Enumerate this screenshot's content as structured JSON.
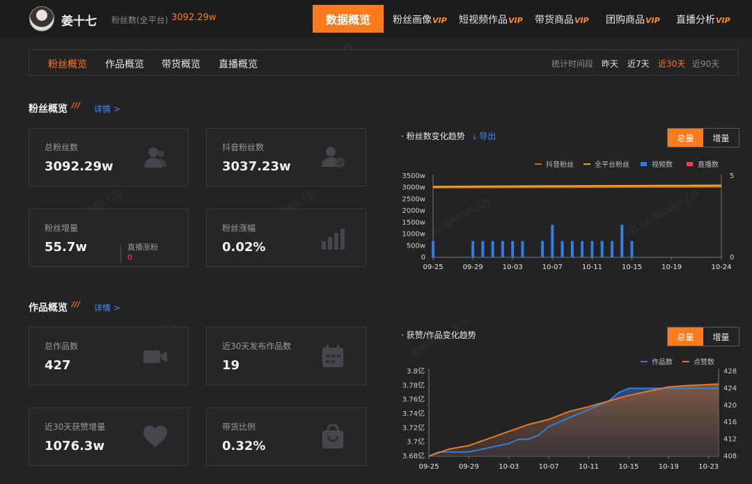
{
  "profile": {
    "name": "姜十七",
    "fans_label": "粉丝数(全平台)",
    "fans_value": "3092.29w"
  },
  "nav": {
    "active": "数据概览",
    "items": [
      {
        "label": "粉丝画像",
        "badge": "VIP"
      },
      {
        "label": "短视频作品",
        "badge": "VIP"
      },
      {
        "label": "带货商品",
        "badge": "VIP"
      },
      {
        "label": "团购商品",
        "badge": "VIP"
      },
      {
        "label": "直播分析",
        "badge": "VIP"
      }
    ]
  },
  "subnav": {
    "tabs": [
      "粉丝概览",
      "作品概览",
      "带货概览",
      "直播概览"
    ],
    "active_tab": "粉丝概览",
    "period_label": "统计时间段",
    "periods": [
      "昨天",
      "近7天",
      "近30天",
      "近90天"
    ],
    "active_period": "近30天"
  },
  "fans_section": {
    "title": "粉丝概览",
    "marks": "///",
    "link": "详情 >",
    "cards": [
      {
        "label": "总粉丝数",
        "value": "3092.29w",
        "icon": "users-icon"
      },
      {
        "label": "抖音粉丝数",
        "value": "3037.23w",
        "icon": "user-check-icon"
      },
      {
        "label": "粉丝增量",
        "value": "55.7w",
        "icon": "none",
        "sub_label": "直播涨粉",
        "sub_value": "0"
      },
      {
        "label": "粉丝涨幅",
        "value": "0.02%",
        "icon": "bar-growth-icon"
      }
    ]
  },
  "works_section": {
    "title": "作品概览",
    "marks": "///",
    "link": "详情 >",
    "cards": [
      {
        "label": "总作品数",
        "value": "427",
        "icon": "video-camera-icon"
      },
      {
        "label": "近30天发布作品数",
        "value": "19",
        "icon": "calendar-icon"
      },
      {
        "label": "近30天获赞增量",
        "value": "1076.3w",
        "icon": "heart-icon"
      },
      {
        "label": "带货比例",
        "value": "0.32%",
        "icon": "shopping-bag-icon"
      }
    ]
  },
  "toggle": {
    "total": "总量",
    "delta": "增量"
  },
  "export_label": "导出",
  "watermarks": {
    "site": "XD.NEWRANK.CN",
    "brand": "新榜有数 · 新抖"
  },
  "colors": {
    "accent": "#ff7a1a",
    "douyin_line": "#d4691e",
    "platform_line": "#e8a317",
    "bar": "#2f7fe0",
    "live": "#ff3b5c",
    "works_line": "#2f7fe0",
    "likes_line": "#e8782a"
  },
  "chart_data": [
    {
      "type": "line",
      "title": "粉丝数变化趋势",
      "legend": [
        "抖音粉丝",
        "全平台粉丝",
        "视频数",
        "直播数"
      ],
      "legend_position": "top-right",
      "x_ticks": [
        "09-25",
        "09-29",
        "10-03",
        "10-07",
        "10-11",
        "10-15",
        "10-19",
        "10-24"
      ],
      "y_left_ticks": [
        "0",
        "500w",
        "1000w",
        "1500w",
        "2000w",
        "2500w",
        "3000w",
        "3500w"
      ],
      "y_left_range": [
        0,
        3500
      ],
      "y_right_ticks": [
        "0",
        "5"
      ],
      "y_right_range": [
        0,
        5
      ],
      "x_start": "09-25",
      "series": [
        {
          "name": "抖音粉丝",
          "kind": "line",
          "axis": "left",
          "x": [
            "09-25",
            "10-24"
          ],
          "values": [
            3000,
            3037
          ]
        },
        {
          "name": "全平台粉丝",
          "kind": "line",
          "axis": "left",
          "x": [
            "09-25",
            "10-24"
          ],
          "values": [
            3040,
            3092
          ]
        },
        {
          "name": "视频数",
          "kind": "bar",
          "axis": "right",
          "x": [
            "09-25",
            "09-29",
            "09-30",
            "10-01",
            "10-02",
            "10-03",
            "10-04",
            "10-06",
            "10-07",
            "10-08",
            "10-09",
            "10-10",
            "10-11",
            "10-12",
            "10-13",
            "10-14",
            "10-15"
          ],
          "values": [
            1,
            1,
            1,
            1,
            1,
            1,
            1,
            1,
            2,
            1,
            1,
            1,
            1,
            1,
            1,
            2,
            1
          ]
        },
        {
          "name": "直播数",
          "kind": "bar",
          "axis": "right",
          "x": [],
          "values": []
        }
      ]
    },
    {
      "type": "area",
      "title": "获赞/作品变化趋势",
      "legend": [
        "作品数",
        "点赞数"
      ],
      "legend_position": "top-right",
      "x_ticks": [
        "09-25",
        "09-29",
        "10-03",
        "10-07",
        "10-11",
        "10-15",
        "10-19",
        "10-23"
      ],
      "y_left_ticks": [
        "3.68亿",
        "3.7亿",
        "3.72亿",
        "3.74亿",
        "3.76亿",
        "3.78亿",
        "3.8亿"
      ],
      "y_left_range": [
        3.68,
        3.8
      ],
      "y_right_ticks": [
        "408",
        "412",
        "416",
        "420",
        "424",
        "428"
      ],
      "y_right_range": [
        408,
        428
      ],
      "x_start": "09-25",
      "series": [
        {
          "name": "作品数",
          "axis": "right",
          "x": [
            "09-25",
            "09-26",
            "09-28",
            "09-29",
            "10-01",
            "10-03",
            "10-04",
            "10-05",
            "10-06",
            "10-07",
            "10-08",
            "10-09",
            "10-11",
            "10-13",
            "10-14",
            "10-15",
            "10-17",
            "10-19",
            "10-21",
            "10-24"
          ],
          "values": [
            408,
            409,
            409,
            409,
            410,
            411,
            412,
            412,
            413,
            415,
            416,
            417,
            419,
            421,
            423,
            424,
            424,
            424,
            424,
            424
          ]
        },
        {
          "name": "点赞数",
          "axis": "left",
          "x": [
            "09-25",
            "09-27",
            "09-29",
            "10-01",
            "10-03",
            "10-05",
            "10-07",
            "10-09",
            "10-11",
            "10-13",
            "10-15",
            "10-17",
            "10-19",
            "10-21",
            "10-24"
          ],
          "values": [
            3.68,
            3.69,
            3.695,
            3.705,
            3.715,
            3.725,
            3.732,
            3.743,
            3.75,
            3.758,
            3.766,
            3.772,
            3.778,
            3.78,
            3.782
          ]
        }
      ]
    }
  ]
}
